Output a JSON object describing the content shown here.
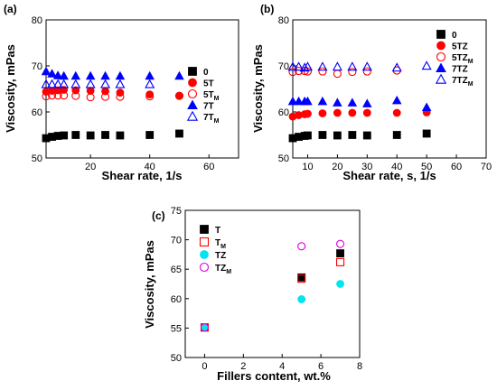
{
  "chart_data": [
    {
      "panel_label": "(a)",
      "type": "scatter",
      "xlabel": "Shear rate, 1/s",
      "ylabel": "Viscosity, mPas",
      "xlim": [
        5,
        70
      ],
      "ylim": [
        50,
        80
      ],
      "xticks": [
        20,
        40,
        60
      ],
      "yticks": [
        50,
        60,
        70,
        80
      ],
      "legend_placement": "right",
      "series": [
        {
          "name": "0",
          "sub": "",
          "marker": "square",
          "filled": true,
          "color": "#000000",
          "x": [
            5,
            7,
            9,
            11,
            15,
            20,
            25,
            30,
            40,
            50
          ],
          "y": [
            54.3,
            54.6,
            54.8,
            54.9,
            55.0,
            54.9,
            55.0,
            54.9,
            55.0,
            55.3
          ]
        },
        {
          "name": "5T",
          "sub": "",
          "marker": "circle",
          "filled": true,
          "color": "#ff0000",
          "x": [
            5,
            7,
            9,
            11,
            15,
            20,
            25,
            30,
            40,
            50
          ],
          "y": [
            64.4,
            64.6,
            64.7,
            64.8,
            64.7,
            64.6,
            64.5,
            64.2,
            63.8,
            63.5
          ]
        },
        {
          "name": "5T",
          "sub": "M",
          "marker": "circle",
          "filled": false,
          "color": "#ff0000",
          "x": [
            5,
            7,
            9,
            11,
            15,
            20,
            25,
            30,
            40,
            50
          ],
          "y": [
            63.4,
            63.6,
            63.6,
            63.6,
            63.5,
            63.2,
            63.3,
            63.3,
            63.4,
            63.5
          ]
        },
        {
          "name": "7T",
          "sub": "",
          "marker": "triangle",
          "filled": true,
          "color": "#0000ff",
          "x": [
            5,
            7,
            9,
            11,
            15,
            20,
            25,
            30,
            40,
            50
          ],
          "y": [
            68.8,
            68.3,
            67.9,
            67.8,
            67.8,
            67.8,
            67.8,
            67.8,
            67.8,
            67.8
          ]
        },
        {
          "name": "7T",
          "sub": "M",
          "marker": "triangle",
          "filled": false,
          "color": "#0000ff",
          "x": [
            5,
            7,
            9,
            11,
            15,
            20,
            25,
            30,
            40
          ],
          "y": [
            66.0,
            66.0,
            66.0,
            66.0,
            66.0,
            66.0,
            66.0,
            66.0,
            66.0
          ]
        }
      ]
    },
    {
      "panel_label": "(b)",
      "type": "scatter",
      "xlabel": "Shear rate, s, 1/s",
      "ylabel": "Viscosity, mPas",
      "xlim": [
        5,
        70
      ],
      "ylim": [
        50,
        80
      ],
      "xticks": [
        10,
        20,
        30,
        40,
        50,
        60,
        70
      ],
      "yticks": [
        50,
        60,
        70,
        80
      ],
      "legend_placement": "top-right",
      "series": [
        {
          "name": "0",
          "sub": "",
          "marker": "square",
          "filled": true,
          "color": "#000000",
          "x": [
            5,
            7,
            9,
            10,
            15,
            20,
            25,
            30,
            40,
            50
          ],
          "y": [
            54.3,
            54.6,
            54.8,
            54.9,
            55.0,
            54.9,
            55.0,
            54.9,
            55.0,
            55.3
          ]
        },
        {
          "name": "5TZ",
          "sub": "",
          "marker": "circle",
          "filled": true,
          "color": "#ff0000",
          "x": [
            5,
            7,
            9,
            10,
            15,
            20,
            25,
            30,
            40,
            50
          ],
          "y": [
            59.0,
            59.3,
            59.5,
            59.6,
            59.7,
            59.8,
            59.8,
            59.8,
            59.8,
            59.9
          ]
        },
        {
          "name": "5TZ",
          "sub": "M",
          "marker": "circle",
          "filled": false,
          "color": "#ff0000",
          "x": [
            5,
            7,
            9,
            10,
            15,
            20,
            25,
            30,
            40
          ],
          "y": [
            68.7,
            68.9,
            68.9,
            68.8,
            68.8,
            68.3,
            68.7,
            68.8,
            69.0
          ]
        },
        {
          "name": "7TZ",
          "sub": "",
          "marker": "triangle",
          "filled": true,
          "color": "#0000ff",
          "x": [
            5,
            7,
            9,
            10,
            15,
            20,
            25,
            30,
            40,
            50
          ],
          "y": [
            62.3,
            62.3,
            62.3,
            62.3,
            62.3,
            62.0,
            62.0,
            61.8,
            62.5,
            61.0
          ]
        },
        {
          "name": "7TZ",
          "sub": "M",
          "marker": "triangle",
          "filled": false,
          "color": "#0000ff",
          "x": [
            5,
            7,
            9,
            10,
            15,
            20,
            25,
            30,
            40,
            50
          ],
          "y": [
            69.8,
            69.8,
            69.6,
            69.8,
            69.8,
            69.8,
            69.8,
            69.8,
            69.6,
            70.0
          ]
        }
      ]
    },
    {
      "panel_label": "(c)",
      "type": "scatter",
      "xlabel": "Fillers content, wt.%",
      "ylabel": "Viscosity, mPas",
      "xlim": [
        -1,
        8
      ],
      "ylim": [
        50,
        75
      ],
      "xticks": [
        0,
        2,
        4,
        6,
        8
      ],
      "yticks": [
        50,
        55,
        60,
        65,
        70,
        75
      ],
      "legend_placement": "top-left",
      "series": [
        {
          "name": "T",
          "sub": "",
          "marker": "square",
          "filled": true,
          "color": "#000000",
          "x": [
            0,
            5,
            7
          ],
          "y": [
            55.1,
            63.6,
            67.7
          ]
        },
        {
          "name": "T",
          "sub": "M",
          "marker": "square",
          "filled": false,
          "color": "#ff0000",
          "x": [
            0,
            5,
            7
          ],
          "y": [
            55.1,
            63.4,
            66.2
          ]
        },
        {
          "name": "TZ",
          "sub": "",
          "marker": "circle",
          "filled": true,
          "color": "#00e5ee",
          "x": [
            0,
            5,
            7
          ],
          "y": [
            55.1,
            59.9,
            62.5
          ]
        },
        {
          "name": "TZ",
          "sub": "M",
          "marker": "circle",
          "filled": false,
          "color": "#dd00dd",
          "x": [
            0,
            5,
            7
          ],
          "y": [
            55.1,
            68.9,
            69.3
          ]
        }
      ]
    }
  ]
}
